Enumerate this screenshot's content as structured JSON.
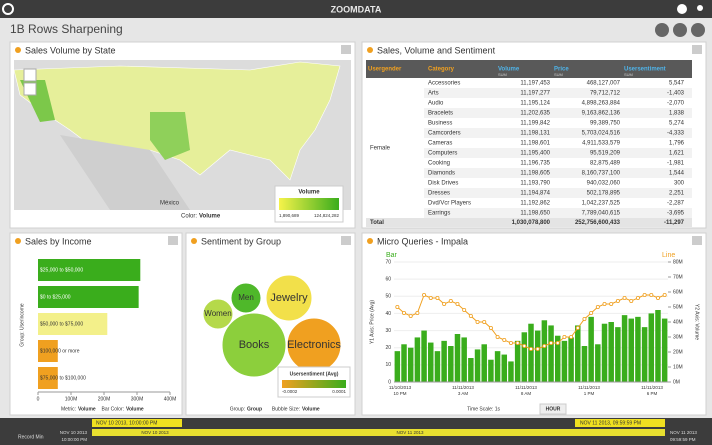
{
  "header": {
    "logo": "ZOOMDATA",
    "title": "1B Rows Sharpening"
  },
  "map": {
    "title": "Sales Volume by State",
    "legend_title": "Volume",
    "legend_min": "1,890,689",
    "legend_max": "124,824,282",
    "country": "México",
    "caption_key": "Color:",
    "caption_value": "Volume"
  },
  "table": {
    "title": "Sales, Volume and Sentiment",
    "columns": [
      "Usergender",
      "Category",
      "Volume",
      "Price",
      "Usersentiment"
    ],
    "sub": "SUM",
    "group": "Female",
    "rows": [
      [
        "Accessories",
        "11,197,453",
        "468,127,007",
        "5,547"
      ],
      [
        "Arts",
        "11,197,277",
        "79,712,712",
        "-1,403"
      ],
      [
        "Audio",
        "11,195,124",
        "4,898,263,884",
        "-2,070"
      ],
      [
        "Bracelets",
        "11,202,635",
        "9,163,862,136",
        "1,838"
      ],
      [
        "Business",
        "11,199,842",
        "99,389,750",
        "5,274"
      ],
      [
        "Camcorders",
        "11,198,131",
        "5,703,024,516",
        "-4,333"
      ],
      [
        "Cameras",
        "11,198,601",
        "4,911,533,579",
        "1,796"
      ],
      [
        "Computers",
        "11,195,400",
        "95,519,209",
        "1,621"
      ],
      [
        "Cooking",
        "11,196,735",
        "82,875,489",
        "-1,981"
      ],
      [
        "Diamonds",
        "11,198,605",
        "8,160,737,100",
        "1,544"
      ],
      [
        "Disk Drives",
        "11,193,790",
        "940,032,060",
        "300"
      ],
      [
        "Dresses",
        "11,194,874",
        "502,178,895",
        "2,251"
      ],
      [
        "Dvd/Vcr Players",
        "11,192,862",
        "1,042,237,525",
        "-2,287"
      ],
      [
        "Earrings",
        "11,198,650",
        "7,789,040,615",
        "-3,695"
      ]
    ],
    "total": [
      "Total",
      "1,030,078,800",
      "252,756,600,433",
      "-11,297"
    ]
  },
  "income": {
    "title": "Sales by Income",
    "type": "bar",
    "orientation": "horizontal",
    "axis_label": "Group: Userincome",
    "categories": [
      "$25,000 to $50,000",
      "$0 to $25,000",
      "$50,000 to $75,000",
      "$100,000 or more",
      "$75,000 to $100,000"
    ],
    "values": [
      310000000,
      305000000,
      210000000,
      60000000,
      60000000
    ],
    "colors": [
      "#3aad1c",
      "#3aad1c",
      "#f3f08a",
      "#f0a020",
      "#f0a020"
    ],
    "xlim": [
      0,
      400000000
    ],
    "xticks": [
      0,
      {
        "value": 100000000,
        "label": "100M"
      },
      {
        "value": 200000000,
        "label": "200M"
      },
      {
        "value": 300000000,
        "label": "300M"
      },
      {
        "value": 400000000,
        "label": "400M"
      }
    ],
    "caption1_key": "Metric:",
    "caption1_value": "Volume",
    "caption2_key": "Bar Color:",
    "caption2_value": "Volume"
  },
  "bubbles": {
    "title": "Sentiment by Group",
    "labels": [
      "Women",
      "Men",
      "Jewelry",
      "Books",
      "Electronics"
    ],
    "legend_title": "Usersentiment (Avg)",
    "legend_min": "-0.0002",
    "legend_max": "0.0001",
    "caption1_key": "Group:",
    "caption1_value": "Group",
    "caption2_key": "Bubble Size:",
    "caption2_value": "Volume"
  },
  "micro": {
    "title": "Micro Queries - Impala",
    "bar_label": "Bar",
    "line_label": "Line",
    "y_label": "Y1 Axis: Price (Avg)",
    "y2_label": "Y2 Axis: Volume",
    "ylim": [
      0,
      70
    ],
    "yticks": [
      0,
      10,
      20,
      30,
      40,
      50,
      60,
      70
    ],
    "y2lim": [
      0,
      80000000
    ],
    "y2ticks": [
      {
        "value": 0,
        "label": "0M"
      },
      {
        "value": 10000000,
        "label": "10M"
      },
      {
        "value": 20000000,
        "label": "20M"
      },
      {
        "value": 30000000,
        "label": "30M"
      },
      {
        "value": 40000000,
        "label": "40M"
      },
      {
        "value": 50000000,
        "label": "50M"
      },
      {
        "value": 60000000,
        "label": "60M"
      },
      {
        "value": 70000000,
        "label": "70M"
      },
      {
        "value": 80000000,
        "label": "80M"
      }
    ],
    "x_labels": [
      [
        "11/10/2013",
        "10 PM"
      ],
      [
        "11/11/2013",
        "3 AM"
      ],
      [
        "11/11/2013",
        "8 AM"
      ],
      [
        "11/11/2013",
        "1 PM"
      ],
      [
        "11/11/2013",
        "6 PM"
      ]
    ],
    "bar_values": [
      18,
      22,
      20,
      26,
      30,
      23,
      18,
      24,
      21,
      28,
      26,
      14,
      19,
      22,
      13,
      18,
      16,
      12,
      24,
      29,
      34,
      30,
      36,
      33,
      27,
      24,
      26,
      33,
      21,
      38,
      22,
      34,
      35,
      32,
      39,
      37,
      38,
      32,
      40,
      42,
      37
    ],
    "line_values": [
      50000000,
      46000000,
      44000000,
      46000000,
      58000000,
      56000000,
      56000000,
      52000000,
      54000000,
      52000000,
      48000000,
      44000000,
      40000000,
      40000000,
      36000000,
      30000000,
      28000000,
      26000000,
      26000000,
      24000000,
      22000000,
      22000000,
      24000000,
      26000000,
      26000000,
      30000000,
      30000000,
      36000000,
      42000000,
      46000000,
      50000000,
      52000000,
      52000000,
      54000000,
      56000000,
      54000000,
      56000000,
      58000000,
      58000000,
      56000000,
      58000000
    ],
    "bar_color": "#3aad1c",
    "line_color": "#f0a020",
    "time_scale": "Time Scale: 1s",
    "unit": "HOUR"
  },
  "timeline": {
    "record_min": "Record Min",
    "start": "NOV 10 2013, 10:00:00 PM",
    "end": "NOV 11 2013, 09:59:59 PM",
    "tick_start": "NOV 10 2013",
    "tick_start_time": "10:00:00 PM",
    "tick_mid1": "NOV 10 2013",
    "tick_mid2": "NOV 11 2013",
    "tick_end": "NOV 11 2013",
    "tick_end_time": "09:59:59 PM"
  }
}
